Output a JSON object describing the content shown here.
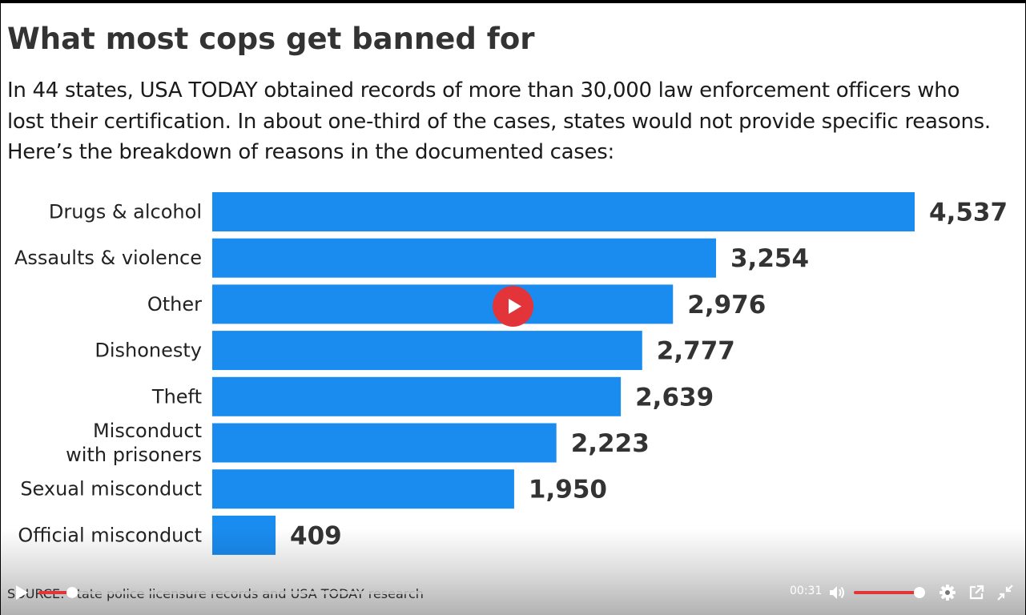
{
  "video": {
    "title": "What most cops get banned for",
    "subtitle": "In 44 states, USA TODAY obtained records of more than 30,000 law enforcement officers who lost their certification. In about  one-third of the cases, states would not provide specific reasons. Here’s the breakdown of reasons in the documented cases:",
    "source": "SOURCE: State police licensure records and USA TODAY research"
  },
  "chart_data": {
    "type": "bar",
    "orientation": "horizontal",
    "categories": [
      "Drugs & alcohol",
      "Assaults & violence",
      "Other",
      "Dishonesty",
      "Theft",
      "Misconduct\nwith prisoners",
      "Sexual misconduct",
      "Official misconduct"
    ],
    "values": [
      4537,
      3254,
      2976,
      2777,
      2639,
      2223,
      1950,
      409
    ],
    "value_labels": [
      "4,537",
      "3,254",
      "2,976",
      "2,777",
      "2,639",
      "2,223",
      "1,950",
      "409"
    ],
    "bar_color": "#1a8cf0",
    "xlim": [
      0,
      4537
    ],
    "grid": false,
    "legend": "none"
  },
  "controls": {
    "time": "00:31",
    "progress_fraction": 0.045,
    "volume_fraction": 0.95,
    "accent_color": "#e3343a",
    "icons": [
      "play-icon",
      "volume-icon",
      "settings-gear-icon",
      "popout-icon",
      "exit-fullscreen-icon"
    ]
  }
}
